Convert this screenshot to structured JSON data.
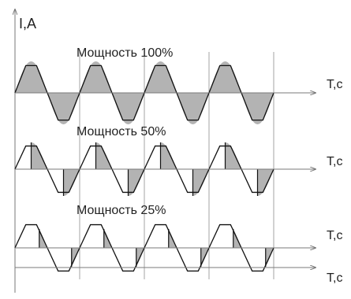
{
  "chart_data": {
    "type": "line",
    "y_axis_label": "I,A",
    "x_axis_label": "T,c",
    "shade_color": "#b3b3b3",
    "panels": [
      {
        "label": "Мощность 100%",
        "power_percent": 100,
        "periods": 4
      },
      {
        "label": "Мощность 50%",
        "power_percent": 50,
        "periods": 4
      },
      {
        "label": "Мощность 25%",
        "power_percent": 25,
        "periods": 4
      }
    ],
    "extra_axis_label": "T,c"
  }
}
